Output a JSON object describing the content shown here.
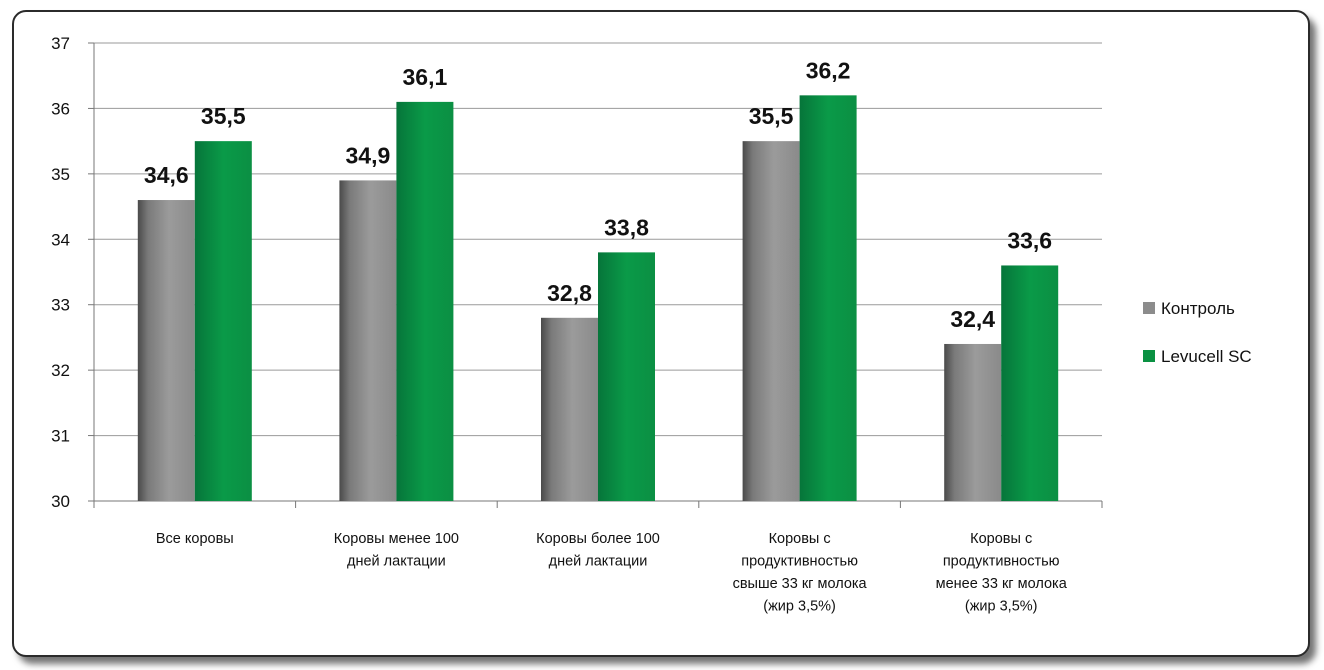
{
  "chart_data": {
    "type": "bar",
    "categories": [
      [
        "Все коровы"
      ],
      [
        "Коровы менее 100",
        "дней лактации"
      ],
      [
        "Коровы более 100",
        "дней лактации"
      ],
      [
        "Коровы с",
        "продуктивностью",
        "свыше 33 кг молока",
        "(жир 3,5%)"
      ],
      [
        "Коровы с",
        "продуктивностью",
        "менее 33 кг молока",
        "(жир 3,5%)"
      ]
    ],
    "series": [
      {
        "name": "Контроль",
        "values": [
          34.6,
          34.9,
          32.8,
          35.5,
          32.4
        ],
        "labels": [
          "34,6",
          "34,9",
          "32,8",
          "35,5",
          "32,4"
        ],
        "color": "#8c8c8c"
      },
      {
        "name": "Levucell SC",
        "values": [
          35.5,
          36.1,
          33.8,
          36.2,
          33.6
        ],
        "labels": [
          "35,5",
          "36,1",
          "33,8",
          "36,2",
          "33,6"
        ],
        "color": "#0a9142"
      }
    ],
    "ylim": [
      30,
      37
    ],
    "yticks": [
      "30",
      "31",
      "32",
      "33",
      "34",
      "35",
      "36",
      "37"
    ],
    "grid": true,
    "legend_position": "right"
  }
}
